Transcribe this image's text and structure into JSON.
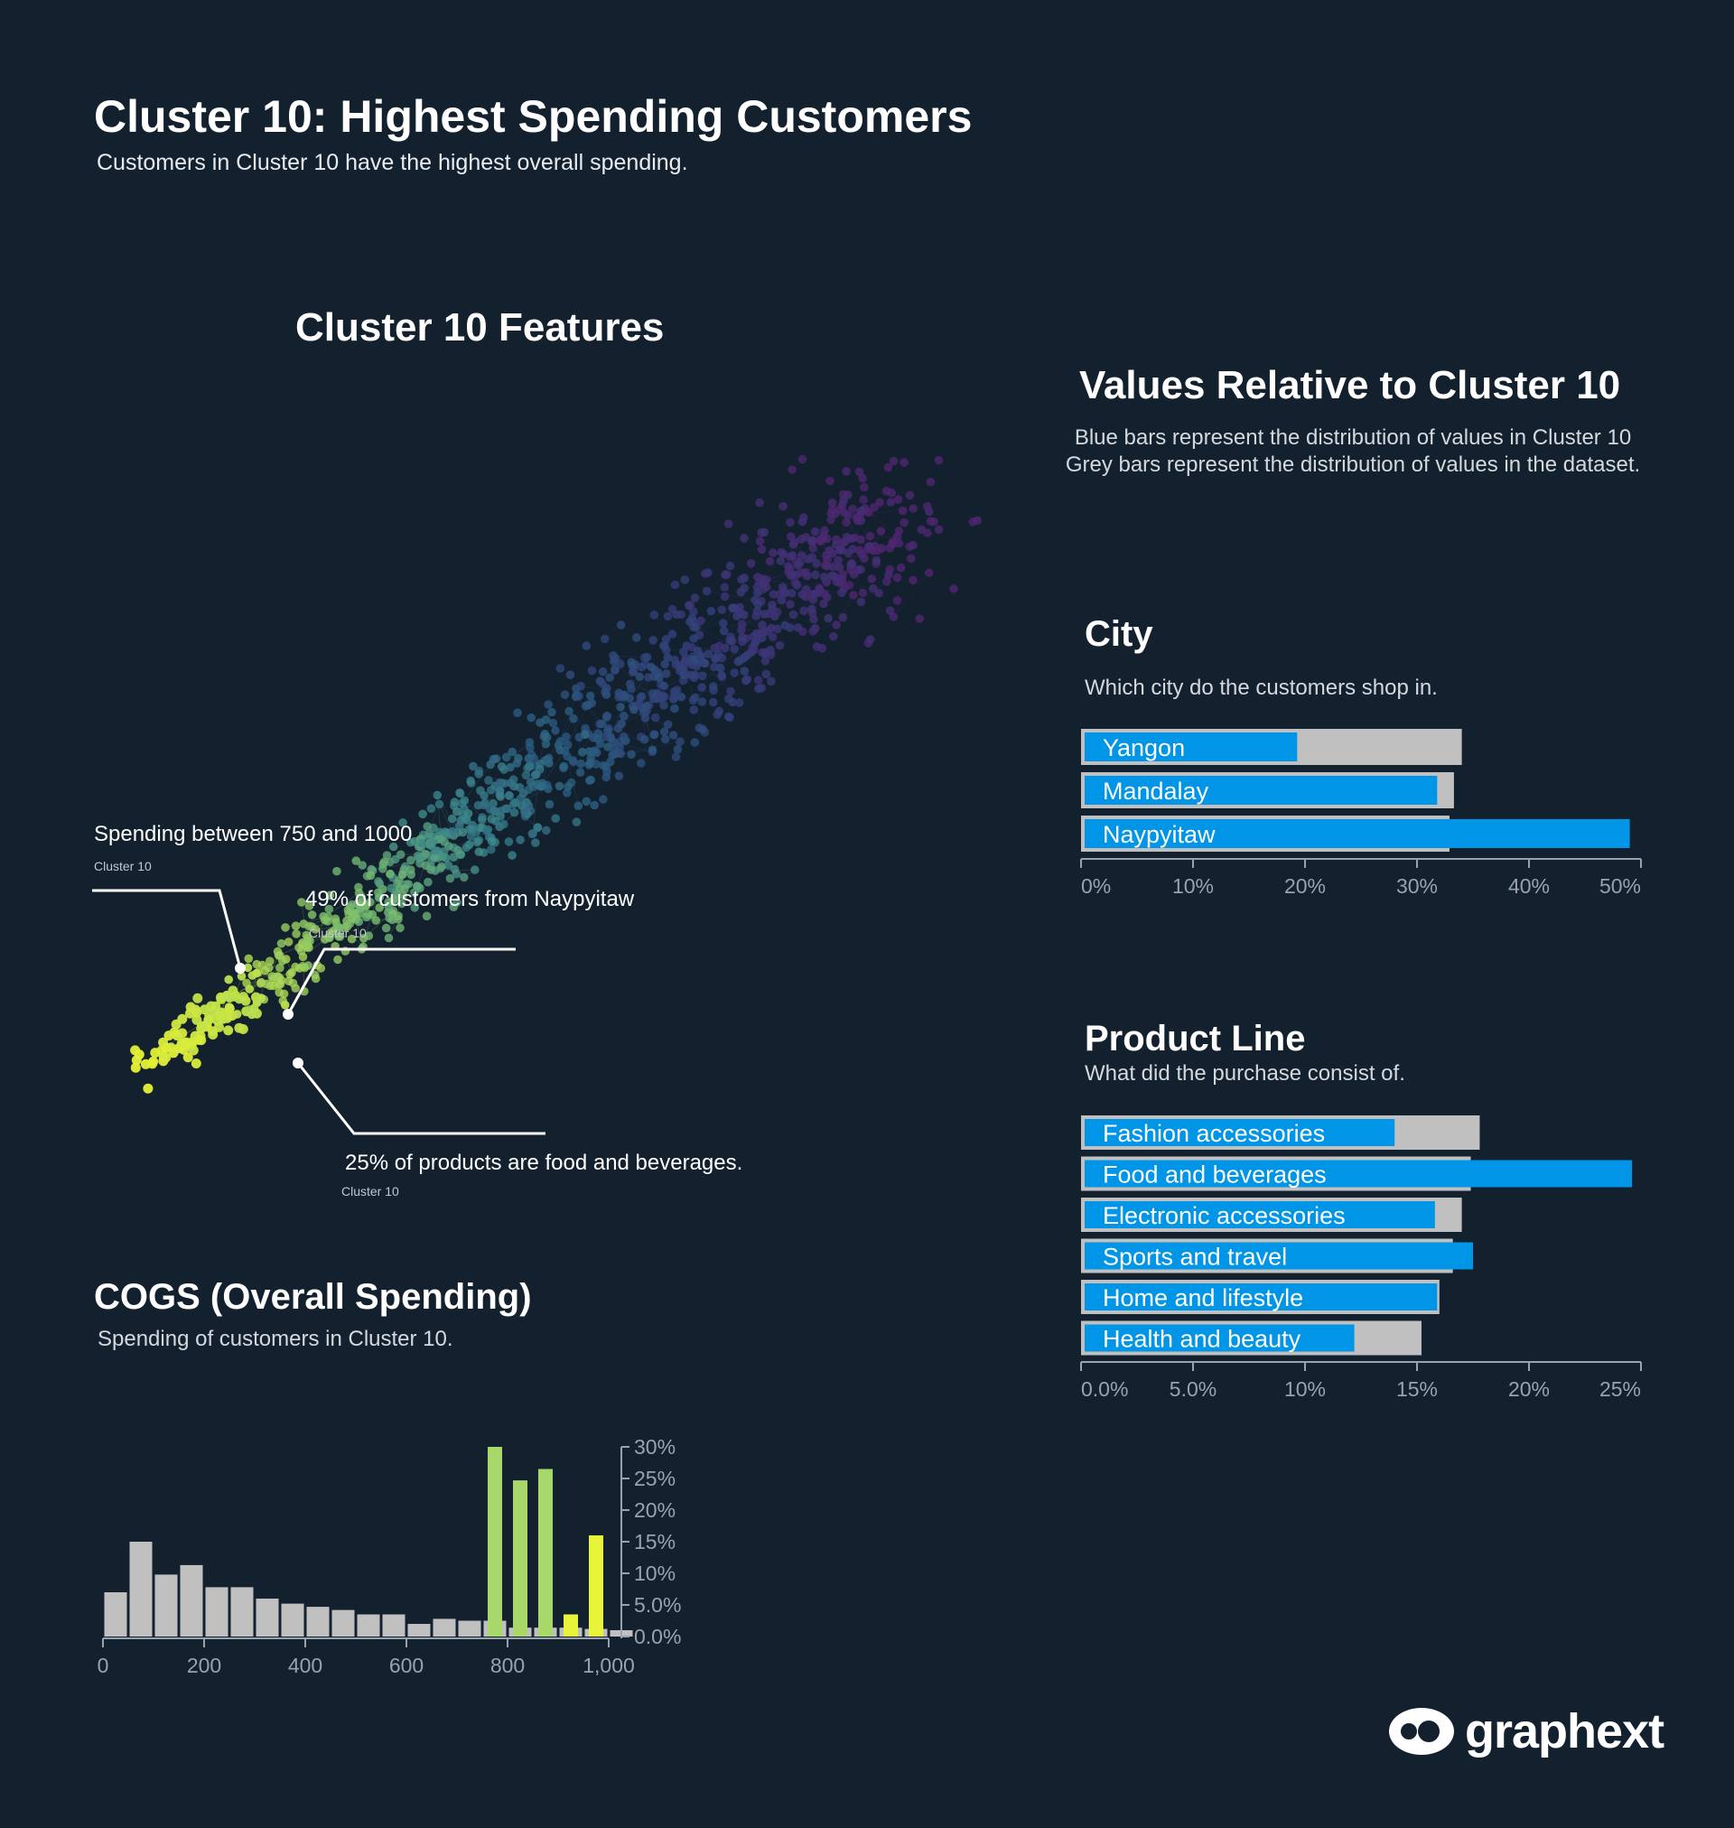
{
  "header": {
    "title": "Cluster 10: Highest Spending Customers",
    "subtitle": "Customers in Cluster 10 have the highest overall spending."
  },
  "network": {
    "title": "Cluster 10 Features",
    "annotations": [
      {
        "text": "Spending between 750 and 1000",
        "sub": "Cluster 10"
      },
      {
        "text": "49% of customers from Naypyitaw",
        "sub": "Cluster 10"
      },
      {
        "text": "25% of products are food and beverages.",
        "sub": "Cluster 10"
      }
    ]
  },
  "relative": {
    "title": "Values Relative to Cluster 10",
    "legend_line1": "Blue bars represent the distribution of values in Cluster 10",
    "legend_line2": "Grey bars represent the distribution of values in the dataset."
  },
  "colors": {
    "background": "#13202e",
    "cluster_blue": "#0095e6",
    "dataset_grey": "#c0c0c0",
    "hist_green": "#a8d86a",
    "hist_yellow": "#e8f43a"
  },
  "chart_data": [
    {
      "type": "bar",
      "orientation": "horizontal",
      "title": "City",
      "subtitle": "Which city do the customers shop in.",
      "categories": [
        "Yangon",
        "Mandalay",
        "Naypyitaw"
      ],
      "series": [
        {
          "values": [
            34,
            33.3,
            32.9
          ]
        },
        {
          "values": [
            19.3,
            31.8,
            49
          ]
        }
      ],
      "xlim": [
        0,
        50
      ],
      "ticks": [
        0,
        10,
        20,
        30,
        40,
        50
      ],
      "tick_labels": [
        "0%",
        "10%",
        "20%",
        "30%",
        "40%",
        "50%"
      ]
    },
    {
      "type": "bar",
      "orientation": "horizontal",
      "title": "Product Line",
      "subtitle": "What did the purchase consist of.",
      "categories": [
        "Fashion accessories",
        "Food and beverages",
        "Electronic accessories",
        "Sports and travel",
        "Home and lifestyle",
        "Health and beauty"
      ],
      "series": [
        {
          "values": [
            17.8,
            17.4,
            17.0,
            16.6,
            16.0,
            15.2
          ]
        },
        {
          "values": [
            14.0,
            24.6,
            15.8,
            17.5,
            15.9,
            12.2
          ]
        }
      ],
      "xlim": [
        0,
        25
      ],
      "ticks": [
        0,
        5,
        10,
        15,
        20,
        25
      ],
      "tick_labels": [
        "0.0%",
        "5.0%",
        "10%",
        "15%",
        "20%",
        "25%"
      ]
    },
    {
      "type": "bar",
      "subtype": "histogram",
      "title": "COGS (Overall Spending)",
      "subtitle": "Spending of customers in Cluster 10.",
      "x_bin_width": 50,
      "x_bin_starts": [
        0,
        50,
        100,
        150,
        200,
        250,
        300,
        350,
        400,
        450,
        500,
        550,
        600,
        650,
        700,
        750,
        800,
        850,
        900,
        950,
        1000
      ],
      "series": [
        {
          "values": [
            7.0,
            15.0,
            9.8,
            11.3,
            7.8,
            7.8,
            6.0,
            5.2,
            4.7,
            4.2,
            3.5,
            3.5,
            2.0,
            2.8,
            2.5,
            2.5,
            1.4,
            1.4,
            1.4,
            1.2,
            1.0
          ]
        },
        {
          "values": [
            null,
            null,
            null,
            null,
            null,
            null,
            null,
            null,
            null,
            null,
            null,
            null,
            null,
            null,
            null,
            30.0,
            24.7,
            26.5,
            3.5,
            16.0,
            null
          ]
        }
      ],
      "xlim": [
        0,
        1000
      ],
      "x_ticks": [
        0,
        200,
        400,
        600,
        800,
        1000
      ],
      "x_tick_labels": [
        "0",
        "200",
        "400",
        "600",
        "800",
        "1,000"
      ],
      "ylim": [
        0,
        30
      ],
      "y_ticks": [
        0,
        5,
        10,
        15,
        20,
        25,
        30
      ],
      "y_tick_labels": [
        "0.0%",
        "5.0%",
        "10%",
        "15%",
        "20%",
        "25%",
        "30%"
      ]
    }
  ],
  "logo": {
    "text": "graphext"
  }
}
